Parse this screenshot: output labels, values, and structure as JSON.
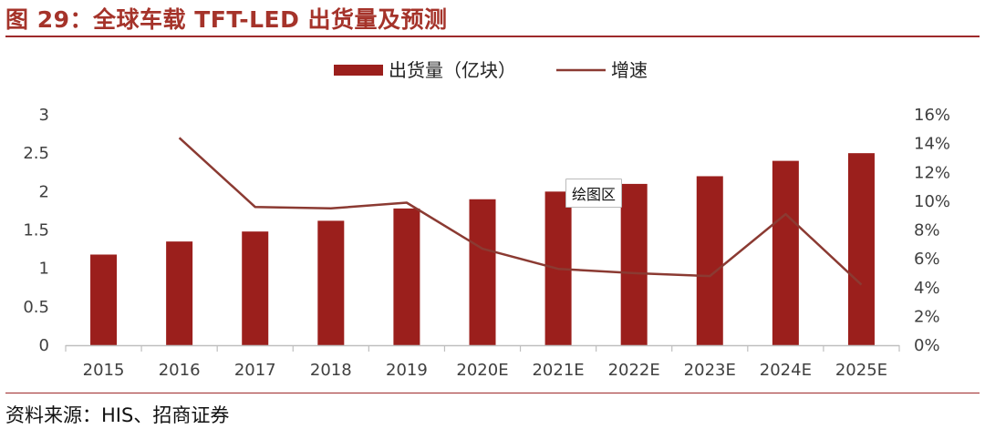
{
  "header": {
    "title": "图 29：全球车载 TFT-LED 出货量及预测"
  },
  "footer": {
    "source": "资料来源：HIS、招商证券"
  },
  "tooltip": {
    "label": "绘图区"
  },
  "chart_data": {
    "type": "bar",
    "categories": [
      "2015",
      "2016",
      "2017",
      "2018",
      "2019",
      "2020E",
      "2021E",
      "2022E",
      "2023E",
      "2024E",
      "2025E"
    ],
    "series": [
      {
        "name": "出货量（亿块）",
        "type": "bar",
        "axis": "left",
        "values": [
          1.18,
          1.35,
          1.48,
          1.62,
          1.78,
          1.9,
          2.0,
          2.1,
          2.2,
          2.4,
          2.5
        ]
      },
      {
        "name": "增速",
        "type": "line",
        "axis": "right",
        "unit": "%",
        "values": [
          null,
          14.4,
          9.6,
          9.5,
          9.9,
          6.7,
          5.3,
          5.0,
          4.8,
          9.1,
          4.2
        ]
      }
    ],
    "yaxis_left": {
      "ylim": [
        0,
        3
      ],
      "ticks": [
        "0",
        "0.5",
        "1",
        "1.5",
        "2",
        "2.5",
        "3"
      ]
    },
    "yaxis_right": {
      "ylim": [
        0,
        16
      ],
      "ticks": [
        "0%",
        "2%",
        "4%",
        "6%",
        "8%",
        "10%",
        "12%",
        "14%",
        "16%"
      ]
    },
    "legend": "top-center",
    "grid": false,
    "colors": {
      "bar": "#9b1f1c",
      "line": "#8b3a32",
      "axis": "#bfbfbf"
    }
  }
}
